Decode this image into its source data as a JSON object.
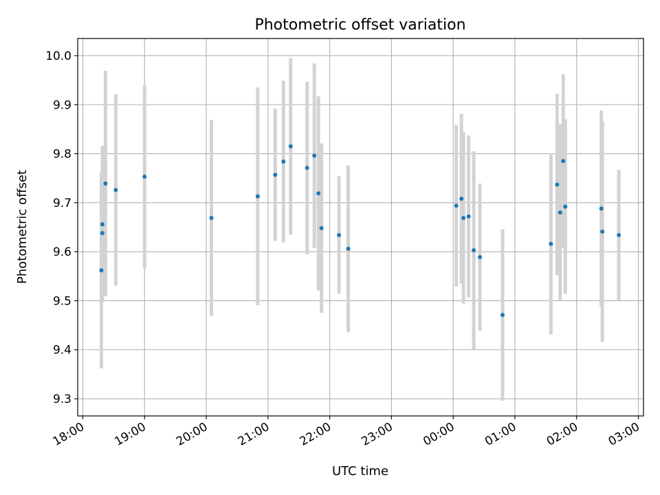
{
  "chart_data": {
    "type": "scatter",
    "title": "Photometric offset variation",
    "xlabel": "UTC time",
    "ylabel": "Photometric offset",
    "x_axis_kind": "time",
    "xlim": [
      "17:55",
      "03:05 next day"
    ],
    "ylim": [
      9.265,
      10.035
    ],
    "grid": true,
    "x_ticks": [
      "18:00",
      "19:00",
      "20:00",
      "21:00",
      "22:00",
      "23:00",
      "00:00",
      "01:00",
      "02:00",
      "03:00"
    ],
    "y_ticks": [
      "9.3",
      "9.4",
      "9.5",
      "9.6",
      "9.7",
      "9.8",
      "9.9",
      "10.0"
    ],
    "y_tick_values": [
      9.3,
      9.4,
      9.5,
      9.6,
      9.7,
      9.8,
      9.9,
      10.0
    ],
    "marker_color": "#1f77b4",
    "errorbar_color": "#d3d3d3",
    "points": [
      {
        "time": "18:18",
        "y": 9.562,
        "err": 0.2
      },
      {
        "time": "18:19",
        "y": 9.638,
        "err": 0.125
      },
      {
        "time": "18:19",
        "y": 9.656,
        "err": 0.16
      },
      {
        "time": "18:22",
        "y": 9.739,
        "err": 0.23
      },
      {
        "time": "18:32",
        "y": 9.726,
        "err": 0.195
      },
      {
        "time": "19:00",
        "y": 9.753,
        "err": 0.187
      },
      {
        "time": "20:05",
        "y": 9.669,
        "err": 0.2
      },
      {
        "time": "20:50",
        "y": 9.713,
        "err": 0.222
      },
      {
        "time": "21:07",
        "y": 9.757,
        "err": 0.135
      },
      {
        "time": "21:15",
        "y": 9.784,
        "err": 0.165
      },
      {
        "time": "21:22",
        "y": 9.815,
        "err": 0.18
      },
      {
        "time": "21:38",
        "y": 9.771,
        "err": 0.176
      },
      {
        "time": "21:45",
        "y": 9.796,
        "err": 0.188
      },
      {
        "time": "21:49",
        "y": 9.719,
        "err": 0.198
      },
      {
        "time": "21:52",
        "y": 9.648,
        "err": 0.173
      },
      {
        "time": "22:09",
        "y": 9.634,
        "err": 0.12
      },
      {
        "time": "22:18",
        "y": 9.606,
        "err": 0.17
      },
      {
        "time": "00:03",
        "y": 9.694,
        "err": 0.165
      },
      {
        "time": "00:08",
        "y": 9.708,
        "err": 0.173
      },
      {
        "time": "00:10",
        "y": 9.669,
        "err": 0.175
      },
      {
        "time": "00:15",
        "y": 9.672,
        "err": 0.165
      },
      {
        "time": "00:20",
        "y": 9.603,
        "err": 0.202
      },
      {
        "time": "00:26",
        "y": 9.589,
        "err": 0.15
      },
      {
        "time": "00:48",
        "y": 9.471,
        "err": 0.175
      },
      {
        "time": "01:35",
        "y": 9.616,
        "err": 0.185
      },
      {
        "time": "01:41",
        "y": 9.737,
        "err": 0.185
      },
      {
        "time": "01:44",
        "y": 9.68,
        "err": 0.18
      },
      {
        "time": "01:47",
        "y": 9.785,
        "err": 0.177
      },
      {
        "time": "01:49",
        "y": 9.692,
        "err": 0.178
      },
      {
        "time": "02:24",
        "y": 9.688,
        "err": 0.2
      },
      {
        "time": "02:25",
        "y": 9.641,
        "err": 0.225
      },
      {
        "time": "02:41",
        "y": 9.634,
        "err": 0.133
      }
    ]
  }
}
